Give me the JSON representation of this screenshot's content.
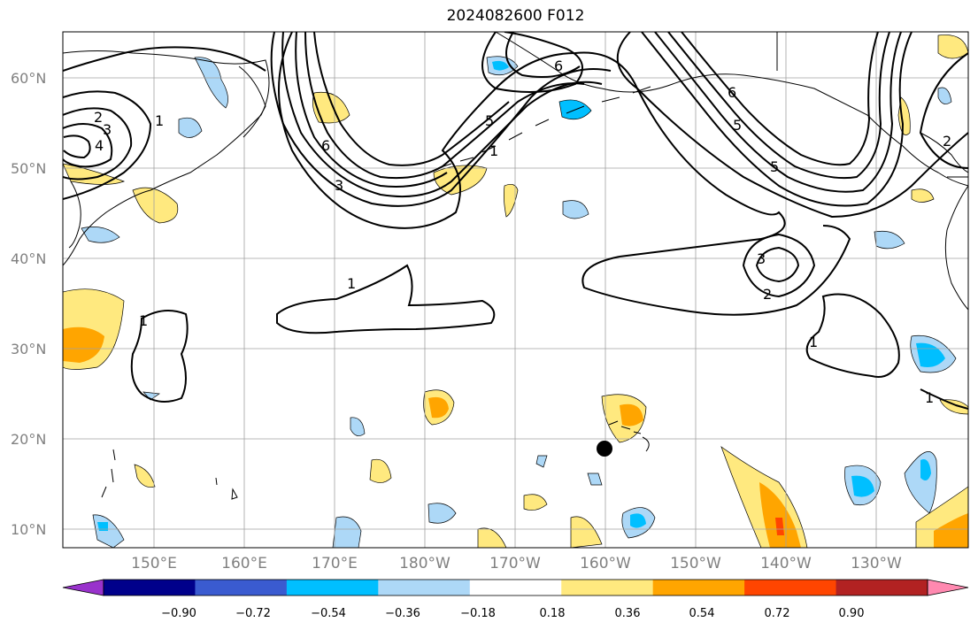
{
  "title": "2024082600 F012",
  "map": {
    "lat_labels": [
      "60°N",
      "50°N",
      "40°N",
      "30°N",
      "20°N",
      "10°N"
    ],
    "lon_labels": [
      "150°E",
      "160°E",
      "170°E",
      "180°W",
      "170°W",
      "160°W",
      "150°W",
      "140°W",
      "130°W"
    ],
    "contour_labels": [
      "1",
      "2",
      "3",
      "4",
      "5",
      "6",
      "1",
      "1",
      "3",
      "2",
      "1",
      "1",
      "5",
      "6",
      "3",
      "1",
      "5",
      "6",
      "2"
    ],
    "marker": {
      "name": "location-dot",
      "lat": 19.0,
      "lon": -160.0
    }
  },
  "colorbar": {
    "ticks": [
      "−0.90",
      "−0.72",
      "−0.54",
      "−0.36",
      "−0.18",
      "0.18",
      "0.36",
      "0.54",
      "0.72",
      "0.90"
    ],
    "colors": [
      "#9932cc",
      "#00008b",
      "#3a5bd0",
      "#00bfff",
      "#add8f7",
      "#ffffff",
      "#ffe97f",
      "#ffa500",
      "#ff4500",
      "#b22222",
      "#ff89b0"
    ]
  }
}
